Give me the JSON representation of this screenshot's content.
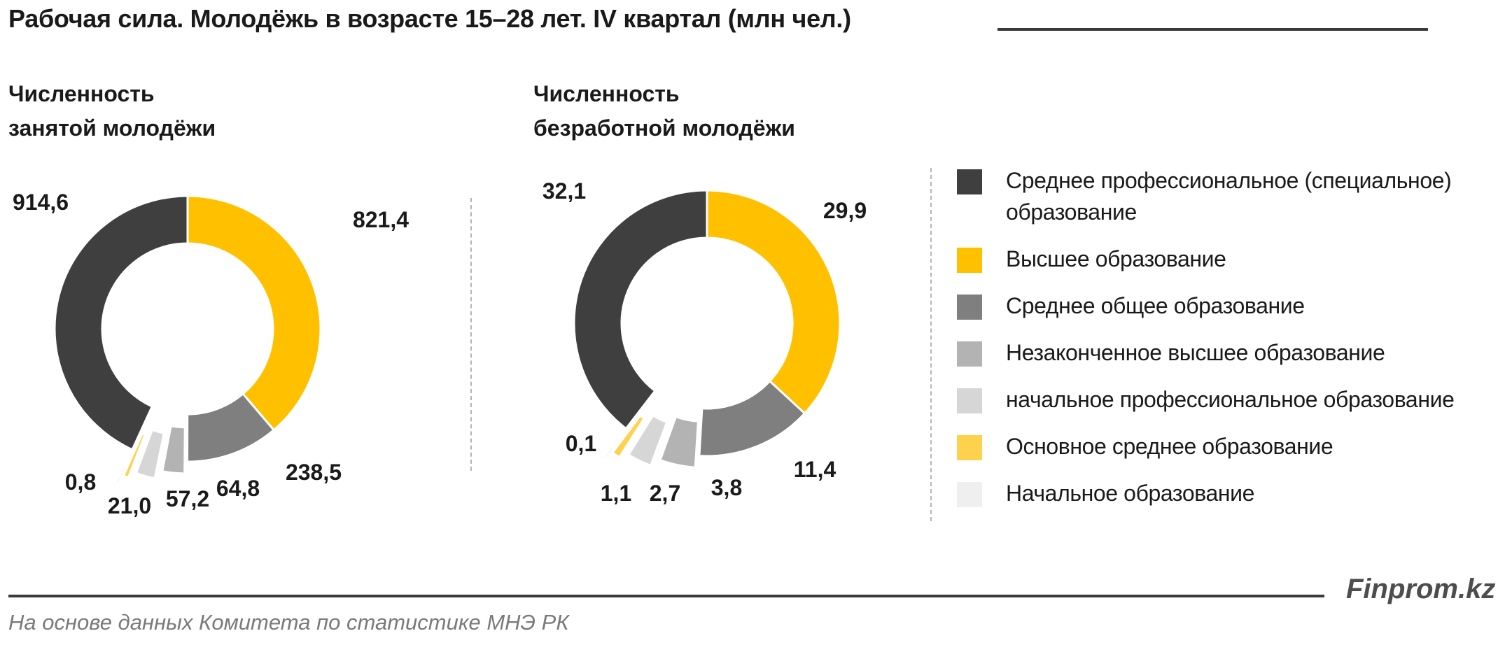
{
  "title": "Рабочая сила. Молодёжь в возрасте 15–28  лет. IV квартал (млн чел.)",
  "colors": {
    "Среднее профессиональное (специальное) образование": "#3f3f3f",
    "Высшее образование": "#ffc000",
    "Среднее общее образование": "#7f7f7f",
    "Незаконченное высшее образование": "#b3b3b3",
    "начальное профессиональное образование": "#d6d6d6",
    "Основное среднее образование": "#ffd24d",
    "Начальное образование": "#efefef"
  },
  "legend": [
    {
      "label_lines": [
        "Среднее профессиональное (специальное)",
        "образование"
      ],
      "color": "#3f3f3f"
    },
    {
      "label_lines": [
        "Высшее образование"
      ],
      "color": "#ffc000"
    },
    {
      "label_lines": [
        "Среднее общее образование"
      ],
      "color": "#7f7f7f"
    },
    {
      "label_lines": [
        "Незаконченное высшее образование"
      ],
      "color": "#b3b3b3"
    },
    {
      "label_lines": [
        "начальное профессиональное образование"
      ],
      "color": "#d6d6d6"
    },
    {
      "label_lines": [
        "Основное среднее образование"
      ],
      "color": "#ffd24d"
    },
    {
      "label_lines": [
        "Начальное образование"
      ],
      "color": "#efefef"
    }
  ],
  "chart_data": [
    {
      "type": "pie",
      "subtitle_lines": [
        "Численность",
        "занятой  молодёжи"
      ],
      "categories": [
        "Высшее образование",
        "Среднее общее образование",
        "Незаконченное высшее образование",
        "начальное профессиональное образование",
        "Основное среднее образование",
        "Начальное образование",
        "Среднее профессиональное (специальное) образование"
      ],
      "values": [
        821.4,
        238.5,
        64.8,
        57.2,
        21.0,
        0.8,
        914.6
      ],
      "value_labels": [
        "821,4",
        "238,5",
        "64,8",
        "57,2",
        "21,0",
        "0,8",
        "914,6"
      ]
    },
    {
      "type": "pie",
      "subtitle_lines": [
        "Численность",
        "безработной  молодёжи"
      ],
      "categories": [
        "Высшее образование",
        "Среднее общее образование",
        "Незаконченное высшее образование",
        "начальное профессиональное образование",
        "Основное среднее образование",
        "Начальное образование",
        "Среднее профессиональное (специальное) образование"
      ],
      "values": [
        29.9,
        11.4,
        3.8,
        2.7,
        1.1,
        0.1,
        32.1
      ],
      "value_labels": [
        "29,9",
        "11,4",
        "3,8",
        "2,7",
        "1,1",
        "0,1",
        "32,1"
      ]
    }
  ],
  "footer": {
    "brand": "Finprom.kz",
    "source": "На основе данных  Комитета по статистике МНЭ РК"
  }
}
